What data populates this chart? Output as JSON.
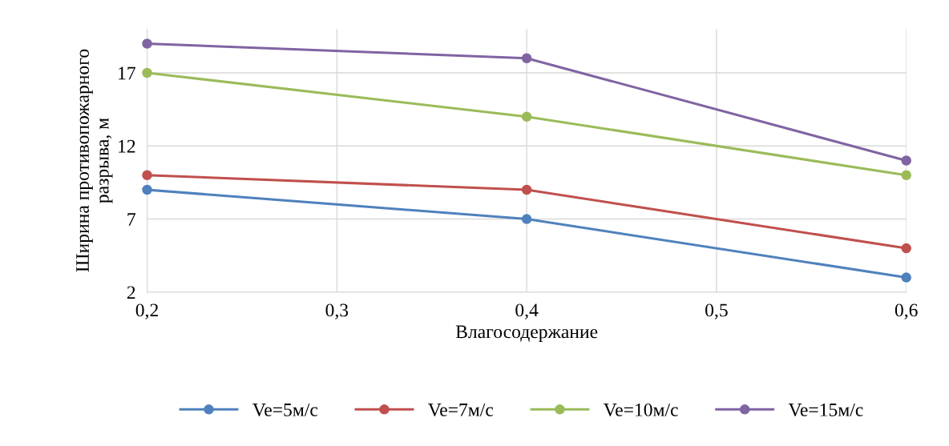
{
  "chart_data": {
    "type": "line",
    "xlabel": "Влагосодержание",
    "ylabel": "Ширина противопожарного\nразрыва, м",
    "x": [
      0.2,
      0.4,
      0.6
    ],
    "xlim": [
      0.2,
      0.6
    ],
    "xticks": [
      {
        "value": 0.2,
        "label": "0,2"
      },
      {
        "value": 0.3,
        "label": "0,3"
      },
      {
        "value": 0.4,
        "label": "0,4"
      },
      {
        "value": 0.5,
        "label": "0,5"
      },
      {
        "value": 0.6,
        "label": "0,6"
      }
    ],
    "ylim": [
      2,
      20
    ],
    "yticks": [
      2,
      7,
      12,
      17
    ],
    "series": [
      {
        "name": "Ve=5м/с",
        "color": "#4f81bd",
        "values": [
          9,
          7,
          3
        ]
      },
      {
        "name": "Ve=7м/с",
        "color": "#c0504d",
        "values": [
          10,
          9,
          5
        ]
      },
      {
        "name": "Ve=10м/с",
        "color": "#9bbb59",
        "values": [
          17,
          14,
          10
        ]
      },
      {
        "name": "Ve=15м/с",
        "color": "#8064a2",
        "values": [
          19,
          18,
          11
        ]
      }
    ],
    "grid": true,
    "legend": "bottom",
    "marker": "circle",
    "line_style": "solid"
  }
}
